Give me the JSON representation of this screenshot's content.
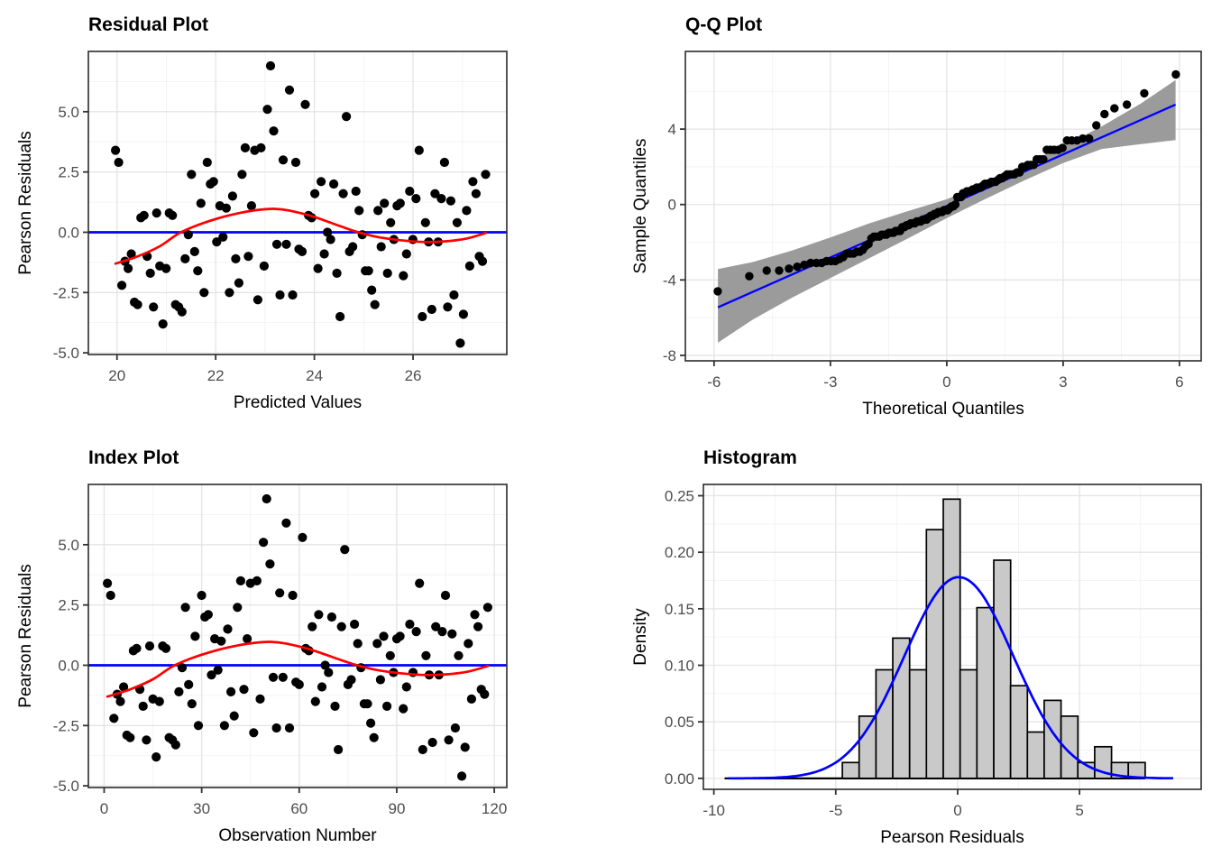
{
  "figure": {
    "kind": "diagnostic-plot-grid",
    "background": "#FFFFFF",
    "n_observations": 118
  },
  "colors": {
    "point": "#000000",
    "reference_blue": "#0000FF",
    "smooth_red": "#FF0000",
    "qq_band_gray": "#9B9B9B",
    "bar_fill": "#C9C9C9",
    "bar_stroke": "#000000",
    "grid_major": "#E4E4E4",
    "grid_minor": "#F2F2F2",
    "panel_border": "#2B2B2B",
    "tick_label": "#4D4D4D"
  },
  "residuals": [
    3.4,
    2.9,
    -2.2,
    -1.2,
    -1.5,
    -0.9,
    -2.9,
    -3.0,
    0.6,
    0.7,
    -1.0,
    -1.7,
    -3.1,
    0.8,
    -1.4,
    -3.8,
    -1.5,
    0.8,
    0.7,
    -3.0,
    -3.1,
    -3.3,
    -1.1,
    -0.1,
    2.4,
    -0.8,
    -1.6,
    1.2,
    -2.5,
    2.9,
    2.0,
    2.1,
    -0.4,
    1.1,
    -0.2,
    1.0,
    -2.5,
    1.5,
    -1.1,
    -2.1,
    2.4,
    3.5,
    -1.0,
    1.1,
    3.4,
    -2.8,
    3.5,
    -1.4,
    5.1,
    6.9,
    4.2,
    -0.5,
    -2.6,
    3.0,
    -0.5,
    5.9,
    -2.6,
    2.9,
    -0.7,
    -0.8,
    5.3,
    0.7,
    0.6,
    1.6,
    -1.5,
    2.1,
    -0.9,
    0.0,
    -0.3,
    2.0,
    -1.7,
    -3.5,
    1.6,
    4.8,
    -0.8,
    -0.6,
    1.7,
    0.9,
    -0.1,
    -1.6,
    -1.6,
    -2.4,
    -3.0,
    0.9,
    -0.6,
    1.2,
    -1.7,
    0.4,
    -0.3,
    1.1,
    1.2,
    -1.8,
    -0.9,
    1.7,
    -0.3,
    1.4,
    3.4,
    -3.5,
    0.4,
    -0.4,
    -3.2,
    1.6,
    -0.4,
    1.4,
    2.9,
    -3.1,
    1.3,
    -2.6,
    0.4,
    -4.6,
    -3.4,
    0.9,
    -1.4,
    2.1,
    1.6,
    -1.0,
    -1.2,
    2.4
  ],
  "chart_data": [
    {
      "type": "scatter",
      "title": "Residual Plot",
      "xlabel": "Predicted Values",
      "ylabel": "Pearson Residuals",
      "xlim": [
        19.42,
        27.9
      ],
      "ylim": [
        -5.07,
        7.5
      ],
      "x_ticks": {
        "values": [
          20,
          22,
          24,
          26
        ],
        "labels": [
          "20",
          "22",
          "24",
          "26"
        ]
      },
      "y_ticks": {
        "values": [
          -5.0,
          -2.5,
          0.0,
          2.5,
          5.0
        ],
        "labels": [
          "-5.0",
          "-2.5",
          "0.0",
          "2.5",
          "5.0"
        ]
      },
      "points_source": "residuals",
      "x_start": 19.97,
      "x_end": 27.47,
      "hline_y": 0,
      "smooth_obs": [
        [
          1,
          -1.3
        ],
        [
          8,
          -1.0
        ],
        [
          15,
          -0.58
        ],
        [
          21,
          -0.05
        ],
        [
          27,
          0.3
        ],
        [
          34,
          0.6
        ],
        [
          41,
          0.82
        ],
        [
          47,
          0.94
        ],
        [
          51,
          0.97
        ],
        [
          56,
          0.9
        ],
        [
          63,
          0.67
        ],
        [
          70,
          0.35
        ],
        [
          77,
          0.03
        ],
        [
          84,
          -0.2
        ],
        [
          91,
          -0.33
        ],
        [
          98,
          -0.4
        ],
        [
          105,
          -0.38
        ],
        [
          112,
          -0.26
        ],
        [
          118,
          -0.03
        ]
      ]
    },
    {
      "type": "qq",
      "title": "Q-Q Plot",
      "xlabel": "Theoretical Quantiles",
      "ylabel": "Sample Quantiles",
      "xlim": [
        -6.74,
        6.56
      ],
      "ylim": [
        -8.29,
        8.12
      ],
      "x_ticks": {
        "values": [
          -6,
          -3,
          0,
          3,
          6
        ],
        "labels": [
          "-6",
          "-3",
          "0",
          "3",
          "6"
        ]
      },
      "y_ticks": {
        "values": [
          -8,
          -4,
          0,
          4
        ],
        "labels": [
          "-8",
          "-4",
          "0",
          "4"
        ]
      },
      "sample_source": "residuals",
      "theoretical_scale": 2.31,
      "line": [
        [
          -5.9,
          -5.45
        ],
        [
          5.9,
          5.3
        ]
      ],
      "band": {
        "t": [
          -5.9,
          -5,
          -4,
          -3,
          -2,
          -1,
          0,
          1,
          2,
          3,
          4,
          5,
          5.9
        ],
        "upper": [
          -3.42,
          -3.05,
          -2.45,
          -1.75,
          -1.0,
          -0.35,
          0.28,
          1.15,
          2.12,
          3.1,
          4.15,
          5.35,
          6.6
        ],
        "lower": [
          -7.33,
          -6.1,
          -4.95,
          -3.9,
          -2.85,
          -1.8,
          -0.72,
          0.3,
          1.28,
          2.2,
          2.95,
          3.2,
          3.42
        ]
      }
    },
    {
      "type": "scatter",
      "title": "Index Plot",
      "xlabel": "Observation Number",
      "ylabel": "Pearson Residuals",
      "xlim": [
        -4.85,
        123.85
      ],
      "ylim": [
        -5.07,
        7.5
      ],
      "x_ticks": {
        "values": [
          0,
          30,
          60,
          90,
          120
        ],
        "labels": [
          "0",
          "30",
          "60",
          "90",
          "120"
        ]
      },
      "y_ticks": {
        "values": [
          -5.0,
          -2.5,
          0.0,
          2.5,
          5.0
        ],
        "labels": [
          "-5.0",
          "-2.5",
          "0.0",
          "2.5",
          "5.0"
        ]
      },
      "points_source": "residuals",
      "x_start": 1,
      "x_end": 118,
      "hline_y": 0,
      "smooth_obs": [
        [
          1,
          -1.3
        ],
        [
          8,
          -1.0
        ],
        [
          15,
          -0.58
        ],
        [
          21,
          -0.05
        ],
        [
          27,
          0.3
        ],
        [
          34,
          0.6
        ],
        [
          41,
          0.82
        ],
        [
          47,
          0.94
        ],
        [
          51,
          0.97
        ],
        [
          56,
          0.9
        ],
        [
          63,
          0.67
        ],
        [
          70,
          0.35
        ],
        [
          77,
          0.03
        ],
        [
          84,
          -0.2
        ],
        [
          91,
          -0.33
        ],
        [
          98,
          -0.4
        ],
        [
          105,
          -0.38
        ],
        [
          112,
          -0.26
        ],
        [
          118,
          -0.03
        ]
      ]
    },
    {
      "type": "histogram",
      "title": "Histogram",
      "xlabel": "Pearson Residuals",
      "ylabel": "Density",
      "xlim": [
        -10.43,
        9.99
      ],
      "ylim": [
        -0.0097,
        0.26
      ],
      "x_ticks": {
        "values": [
          -10,
          -5,
          0,
          5
        ],
        "labels": [
          "-10",
          "-5",
          "0",
          "5"
        ]
      },
      "y_ticks": {
        "values": [
          0.0,
          0.05,
          0.1,
          0.15,
          0.2,
          0.25
        ],
        "labels": [
          "0.00",
          "0.05",
          "0.10",
          "0.15",
          "0.20",
          "0.25"
        ]
      },
      "bin_start": -4.73,
      "bin_width": 0.69,
      "densities": [
        0.014,
        0.055,
        0.096,
        0.124,
        0.096,
        0.22,
        0.247,
        0.096,
        0.151,
        0.193,
        0.082,
        0.041,
        0.069,
        0.055,
        0.014,
        0.028,
        0.014,
        0.014
      ],
      "baseline_range": [
        -9.56,
        7.69
      ],
      "normal_curve": {
        "mean": 0.05,
        "sd": 2.24,
        "peak": 0.178,
        "x_range": [
          -9.4,
          8.9
        ]
      }
    }
  ]
}
